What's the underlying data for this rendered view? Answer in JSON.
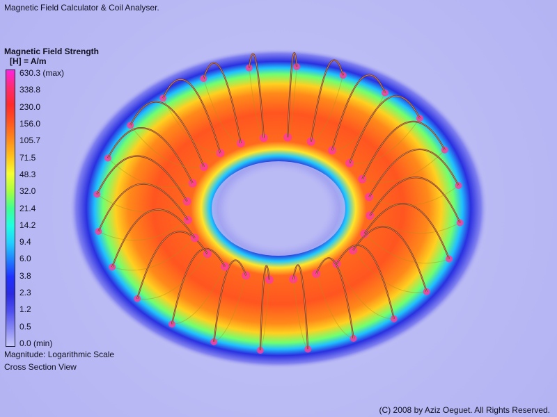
{
  "app": {
    "title": "Magnetic Field Calculator & Coil Analyser."
  },
  "legend": {
    "title": "Magnetic Field Strength",
    "units": "[H] = A/m",
    "ticks": [
      "630.3 (max)",
      "338.8",
      "230.0",
      "156.0",
      "105.7",
      "71.5",
      "48.3",
      "32.0",
      "21.4",
      "14.2",
      "9.4",
      "6.0",
      "3.8",
      "2.3",
      "1.2",
      "0.5",
      "0.0 (min)"
    ],
    "colors": [
      "#ff20e0",
      "#ff2a70",
      "#ff2a2a",
      "#ff5520",
      "#ff8a1a",
      "#ffc21a",
      "#f5ff30",
      "#a8ff40",
      "#40ff90",
      "#20ffe0",
      "#20d0ff",
      "#2080ff",
      "#2030ff",
      "#2a2ae0",
      "#5050f0",
      "#8a8af5",
      "#c8c8fa"
    ]
  },
  "notes": {
    "magnitude": "Magnitude: Logarithmic Scale",
    "view": "Cross Section View"
  },
  "footer": {
    "copyright": "(C) 2008 by Aziz Oeguet. All Rights Reserved."
  },
  "coil": {
    "turns": 24
  }
}
